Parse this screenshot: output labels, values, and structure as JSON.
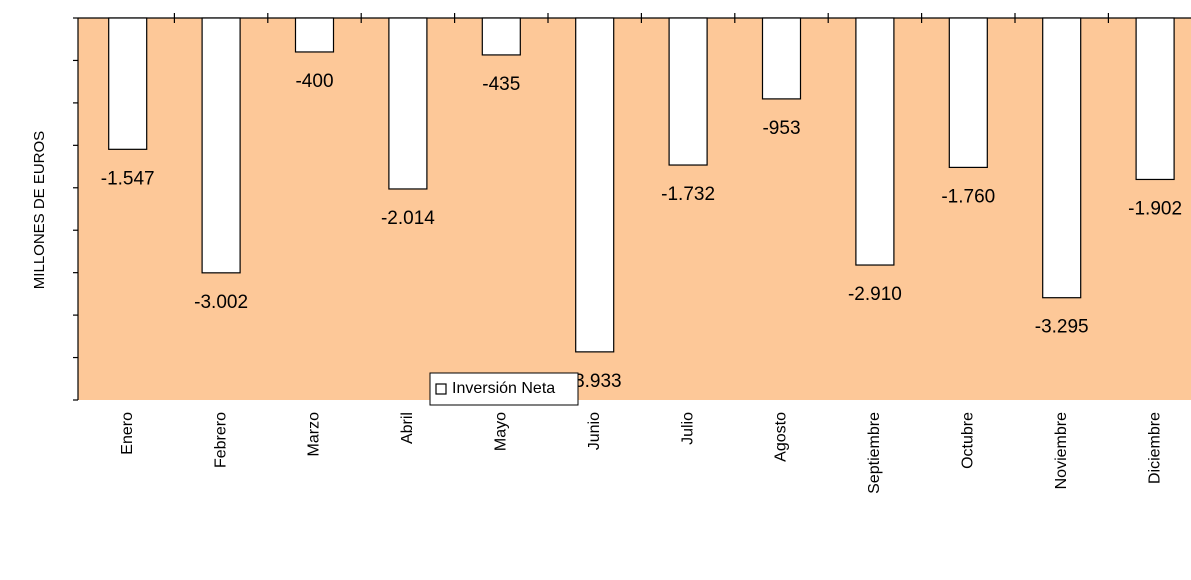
{
  "chart_data": {
    "type": "bar",
    "y_label": "MILLONES DE EUROS",
    "categories": [
      "Enero",
      "Febrero",
      "Marzo",
      "Abril",
      "Mayo",
      "Junio",
      "Julio",
      "Agosto",
      "Septiembre",
      "Octubre",
      "Noviembre",
      "Diciembre"
    ],
    "series": [
      {
        "name": "Inversión Neta",
        "color": "#ffffff",
        "values": [
          -1547,
          -3002,
          -400,
          -2014,
          -435,
          -3933,
          -1732,
          -953,
          -2910,
          -1760,
          -3295,
          -1902
        ],
        "value_labels": [
          "-1.547",
          "-3.002",
          "-400",
          "-2.014",
          "-435",
          "-3.933",
          "-1.732",
          "-953",
          "-2.910",
          "-1.760",
          "-3.295",
          "-1.902"
        ]
      }
    ],
    "ylim": [
      -4500,
      0
    ],
    "yticks": [
      -4500,
      -4000,
      -3500,
      -3000,
      -2500,
      -2000,
      -1500,
      -1000,
      -500,
      0
    ],
    "plot_background": "#fdc898",
    "legend": "bottom"
  }
}
